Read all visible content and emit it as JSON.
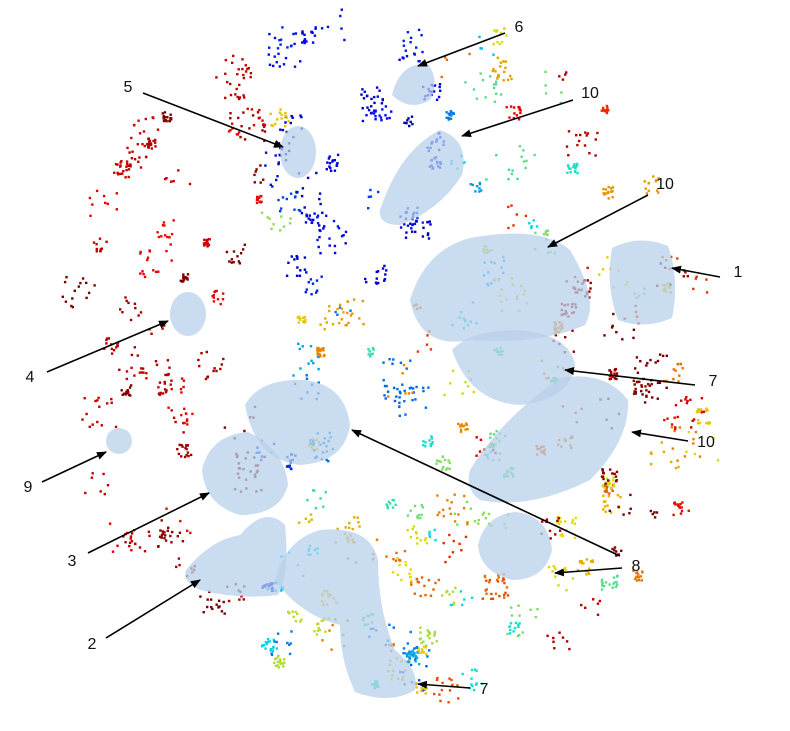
{
  "annotations": [
    {
      "label": "6"
    },
    {
      "label": "10"
    },
    {
      "label": "5"
    },
    {
      "label": "10"
    },
    {
      "label": "1"
    },
    {
      "label": "4"
    },
    {
      "label": "7"
    },
    {
      "label": "10"
    },
    {
      "label": "9"
    },
    {
      "label": "3"
    },
    {
      "label": "8"
    },
    {
      "label": "2"
    },
    {
      "label": "7"
    }
  ]
}
